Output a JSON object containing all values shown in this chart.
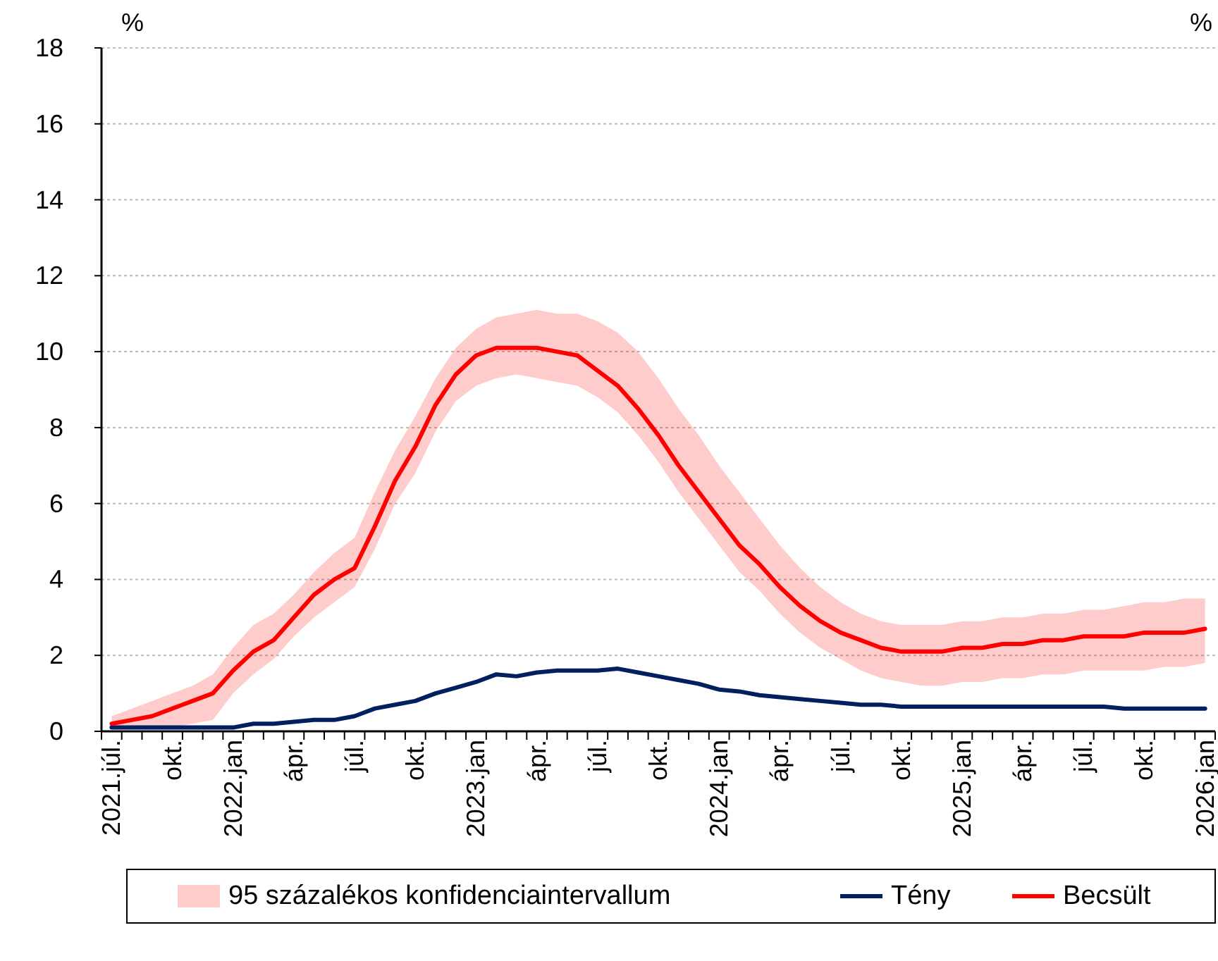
{
  "chart_data": {
    "type": "line",
    "ylabel": "%",
    "annotations": [
      "%",
      "95 százalékos konfidenciaintervallum"
    ],
    "categories": [
      "2021.júl.",
      null,
      null,
      "okt.",
      null,
      null,
      "2022.jan",
      null,
      null,
      "ápr.",
      null,
      null,
      "júl.",
      null,
      null,
      "okt.",
      null,
      null,
      "2023.jan",
      null,
      null,
      "ápr.",
      null,
      null,
      "júl.",
      null,
      null,
      "okt.",
      null,
      null,
      "2024.jan",
      null,
      null,
      "ápr.",
      null,
      null,
      "júl.",
      null,
      null,
      "okt.",
      null,
      null,
      "2025.jan",
      null,
      null,
      "ápr.",
      null,
      null,
      "júl.",
      null,
      null,
      "okt.",
      null,
      null,
      "2026.jan"
    ],
    "ylim": [
      0,
      18
    ],
    "yticks": [
      0,
      2,
      4,
      6,
      8,
      10,
      12,
      14,
      16,
      18
    ],
    "grid": "y",
    "legend": "bottom",
    "series": [
      {
        "name": "Tény",
        "type": "line",
        "color": "#002060",
        "values": [
          0.1,
          0.1,
          0.1,
          0.1,
          0.1,
          0.1,
          0.1,
          0.2,
          0.2,
          0.25,
          0.3,
          0.3,
          0.4,
          0.6,
          0.7,
          0.8,
          1.0,
          1.15,
          1.3,
          1.5,
          1.45,
          1.55,
          1.6,
          1.6,
          1.6,
          1.65,
          1.55,
          1.45,
          1.35,
          1.25,
          1.1,
          1.05,
          0.95,
          0.9,
          0.85,
          0.8,
          0.75,
          0.7,
          0.7,
          0.65,
          0.65,
          0.65,
          0.65,
          0.65,
          0.65,
          0.65,
          0.65,
          0.65,
          0.65,
          0.65,
          0.6,
          0.6,
          0.6,
          0.6,
          0.6
        ]
      },
      {
        "name": "Becsült",
        "type": "line",
        "color": "#ff0000",
        "values": [
          0.2,
          0.3,
          0.4,
          0.6,
          0.8,
          1.0,
          1.6,
          2.1,
          2.4,
          3.0,
          3.6,
          4.0,
          4.3,
          5.4,
          6.6,
          7.5,
          8.6,
          9.4,
          9.9,
          10.1,
          10.1,
          10.1,
          10.0,
          9.9,
          9.5,
          9.1,
          8.5,
          7.8,
          7.0,
          6.3,
          5.6,
          4.9,
          4.4,
          3.8,
          3.3,
          2.9,
          2.6,
          2.4,
          2.2,
          2.1,
          2.1,
          2.1,
          2.2,
          2.2,
          2.3,
          2.3,
          2.4,
          2.4,
          2.5,
          2.5,
          2.5,
          2.6,
          2.6,
          2.6,
          2.7
        ],
        "lower": [
          0.1,
          0.1,
          0.1,
          0.1,
          0.2,
          0.3,
          1.0,
          1.5,
          1.9,
          2.5,
          3.0,
          3.4,
          3.8,
          4.8,
          6.0,
          6.8,
          7.9,
          8.7,
          9.1,
          9.3,
          9.4,
          9.3,
          9.2,
          9.1,
          8.8,
          8.4,
          7.8,
          7.1,
          6.3,
          5.6,
          4.9,
          4.2,
          3.7,
          3.1,
          2.6,
          2.2,
          1.9,
          1.6,
          1.4,
          1.3,
          1.2,
          1.2,
          1.3,
          1.3,
          1.4,
          1.4,
          1.5,
          1.5,
          1.6,
          1.6,
          1.6,
          1.6,
          1.7,
          1.7,
          1.8
        ],
        "upper": [
          0.4,
          0.6,
          0.8,
          1.0,
          1.2,
          1.5,
          2.2,
          2.8,
          3.1,
          3.6,
          4.2,
          4.7,
          5.1,
          6.3,
          7.4,
          8.3,
          9.3,
          10.1,
          10.6,
          10.9,
          11.0,
          11.1,
          11.0,
          11.0,
          10.8,
          10.5,
          10.0,
          9.3,
          8.5,
          7.8,
          7.0,
          6.3,
          5.6,
          4.9,
          4.3,
          3.8,
          3.4,
          3.1,
          2.9,
          2.8,
          2.8,
          2.8,
          2.9,
          2.9,
          3.0,
          3.0,
          3.1,
          3.1,
          3.2,
          3.2,
          3.3,
          3.4,
          3.4,
          3.5,
          3.5
        ]
      }
    ]
  }
}
